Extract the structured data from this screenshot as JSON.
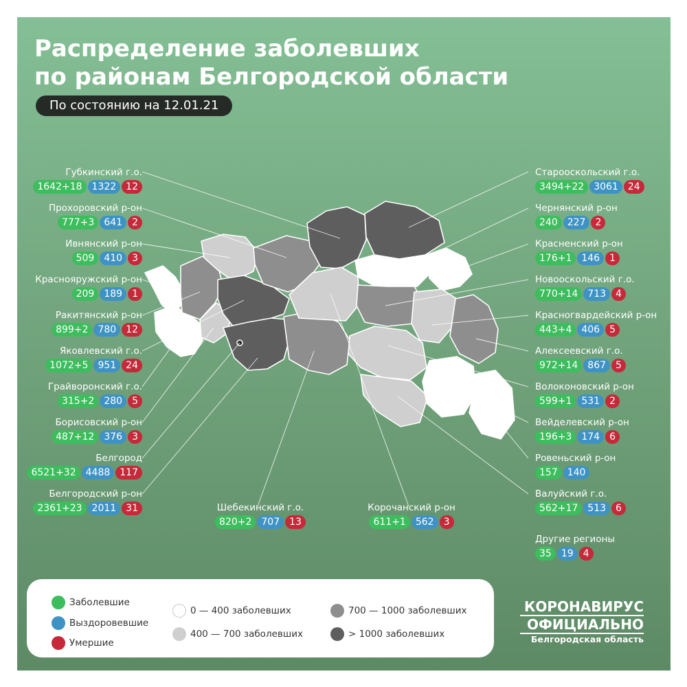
{
  "title": {
    "line1": "Распределение заболевших",
    "line2": "по районам Белгородской области"
  },
  "date_label": "По состоянию на 12.01.21",
  "colors": {
    "infected": "#3dbd5d",
    "recovered": "#3f93c4",
    "deaths": "#c5293a",
    "tier1": "#ffffff",
    "tier2": "#cfcfcf",
    "tier3": "#8e8e8e",
    "tier4": "#5e5e5e"
  },
  "districts": [
    {
      "name": "Губкинский г.о.",
      "infected": "1642+18",
      "recovered": "1322",
      "deaths": "12"
    },
    {
      "name": "Прохоровский р-он",
      "infected": "777+3",
      "recovered": "641",
      "deaths": "2"
    },
    {
      "name": "Ивнянский р-он",
      "infected": "509",
      "recovered": "410",
      "deaths": "3"
    },
    {
      "name": "Краснояружский р-он",
      "infected": "209",
      "recovered": "189",
      "deaths": "1"
    },
    {
      "name": "Ракитянский р-он",
      "infected": "899+2",
      "recovered": "780",
      "deaths": "12"
    },
    {
      "name": "Яковлевский г.о.",
      "infected": "1072+5",
      "recovered": "951",
      "deaths": "24"
    },
    {
      "name": "Грайворонский г.о.",
      "infected": "315+2",
      "recovered": "280",
      "deaths": "5"
    },
    {
      "name": "Борисовский р-он",
      "infected": "487+12",
      "recovered": "376",
      "deaths": "3"
    },
    {
      "name": "Белгород",
      "infected": "6521+32",
      "recovered": "4488",
      "deaths": "117"
    },
    {
      "name": "Белгородский р-он",
      "infected": "2361+23",
      "recovered": "2011",
      "deaths": "31"
    },
    {
      "name": "Шебекинский г.о.",
      "infected": "820+2",
      "recovered": "707",
      "deaths": "13"
    },
    {
      "name": "Корочанский р-он",
      "infected": "611+1",
      "recovered": "562",
      "deaths": "3"
    },
    {
      "name": "Старооскольский г.о.",
      "infected": "3494+22",
      "recovered": "3061",
      "deaths": "24"
    },
    {
      "name": "Чернянский р-он",
      "infected": "240",
      "recovered": "227",
      "deaths": "2"
    },
    {
      "name": "Красненский р-он",
      "infected": "176+1",
      "recovered": "146",
      "deaths": "1"
    },
    {
      "name": "Новооскольский г.о.",
      "infected": "770+14",
      "recovered": "713",
      "deaths": "4"
    },
    {
      "name": "Красногвардейский р-он",
      "infected": "443+4",
      "recovered": "406",
      "deaths": "5"
    },
    {
      "name": "Алексеевский г.о.",
      "infected": "972+14",
      "recovered": "867",
      "deaths": "5"
    },
    {
      "name": "Волоконовский р-он",
      "infected": "599+1",
      "recovered": "531",
      "deaths": "2"
    },
    {
      "name": "Вейделевский р-он",
      "infected": "196+3",
      "recovered": "174",
      "deaths": "6"
    },
    {
      "name": "Ровеньский р-он",
      "infected": "157",
      "recovered": "140"
    },
    {
      "name": "Валуйский г.о.",
      "infected": "562+17",
      "recovered": "513",
      "deaths": "6"
    },
    {
      "name": "Другие регионы",
      "infected": "35",
      "recovered": "19",
      "deaths": "4"
    }
  ],
  "legend": {
    "infected": "Заболевшие",
    "recovered": "Выздоровевшие",
    "deaths": "Умершие",
    "tier1": "0 — 400 заболевших",
    "tier2": "400 — 700 заболевших",
    "tier3": "700 — 1000 заболевших",
    "tier4": "> 1000 заболевших"
  },
  "brand": {
    "line1": "КОРОНАВИРУС",
    "line2": "ОФИЦИАЛЬНО",
    "line3": "Белгородская область"
  }
}
